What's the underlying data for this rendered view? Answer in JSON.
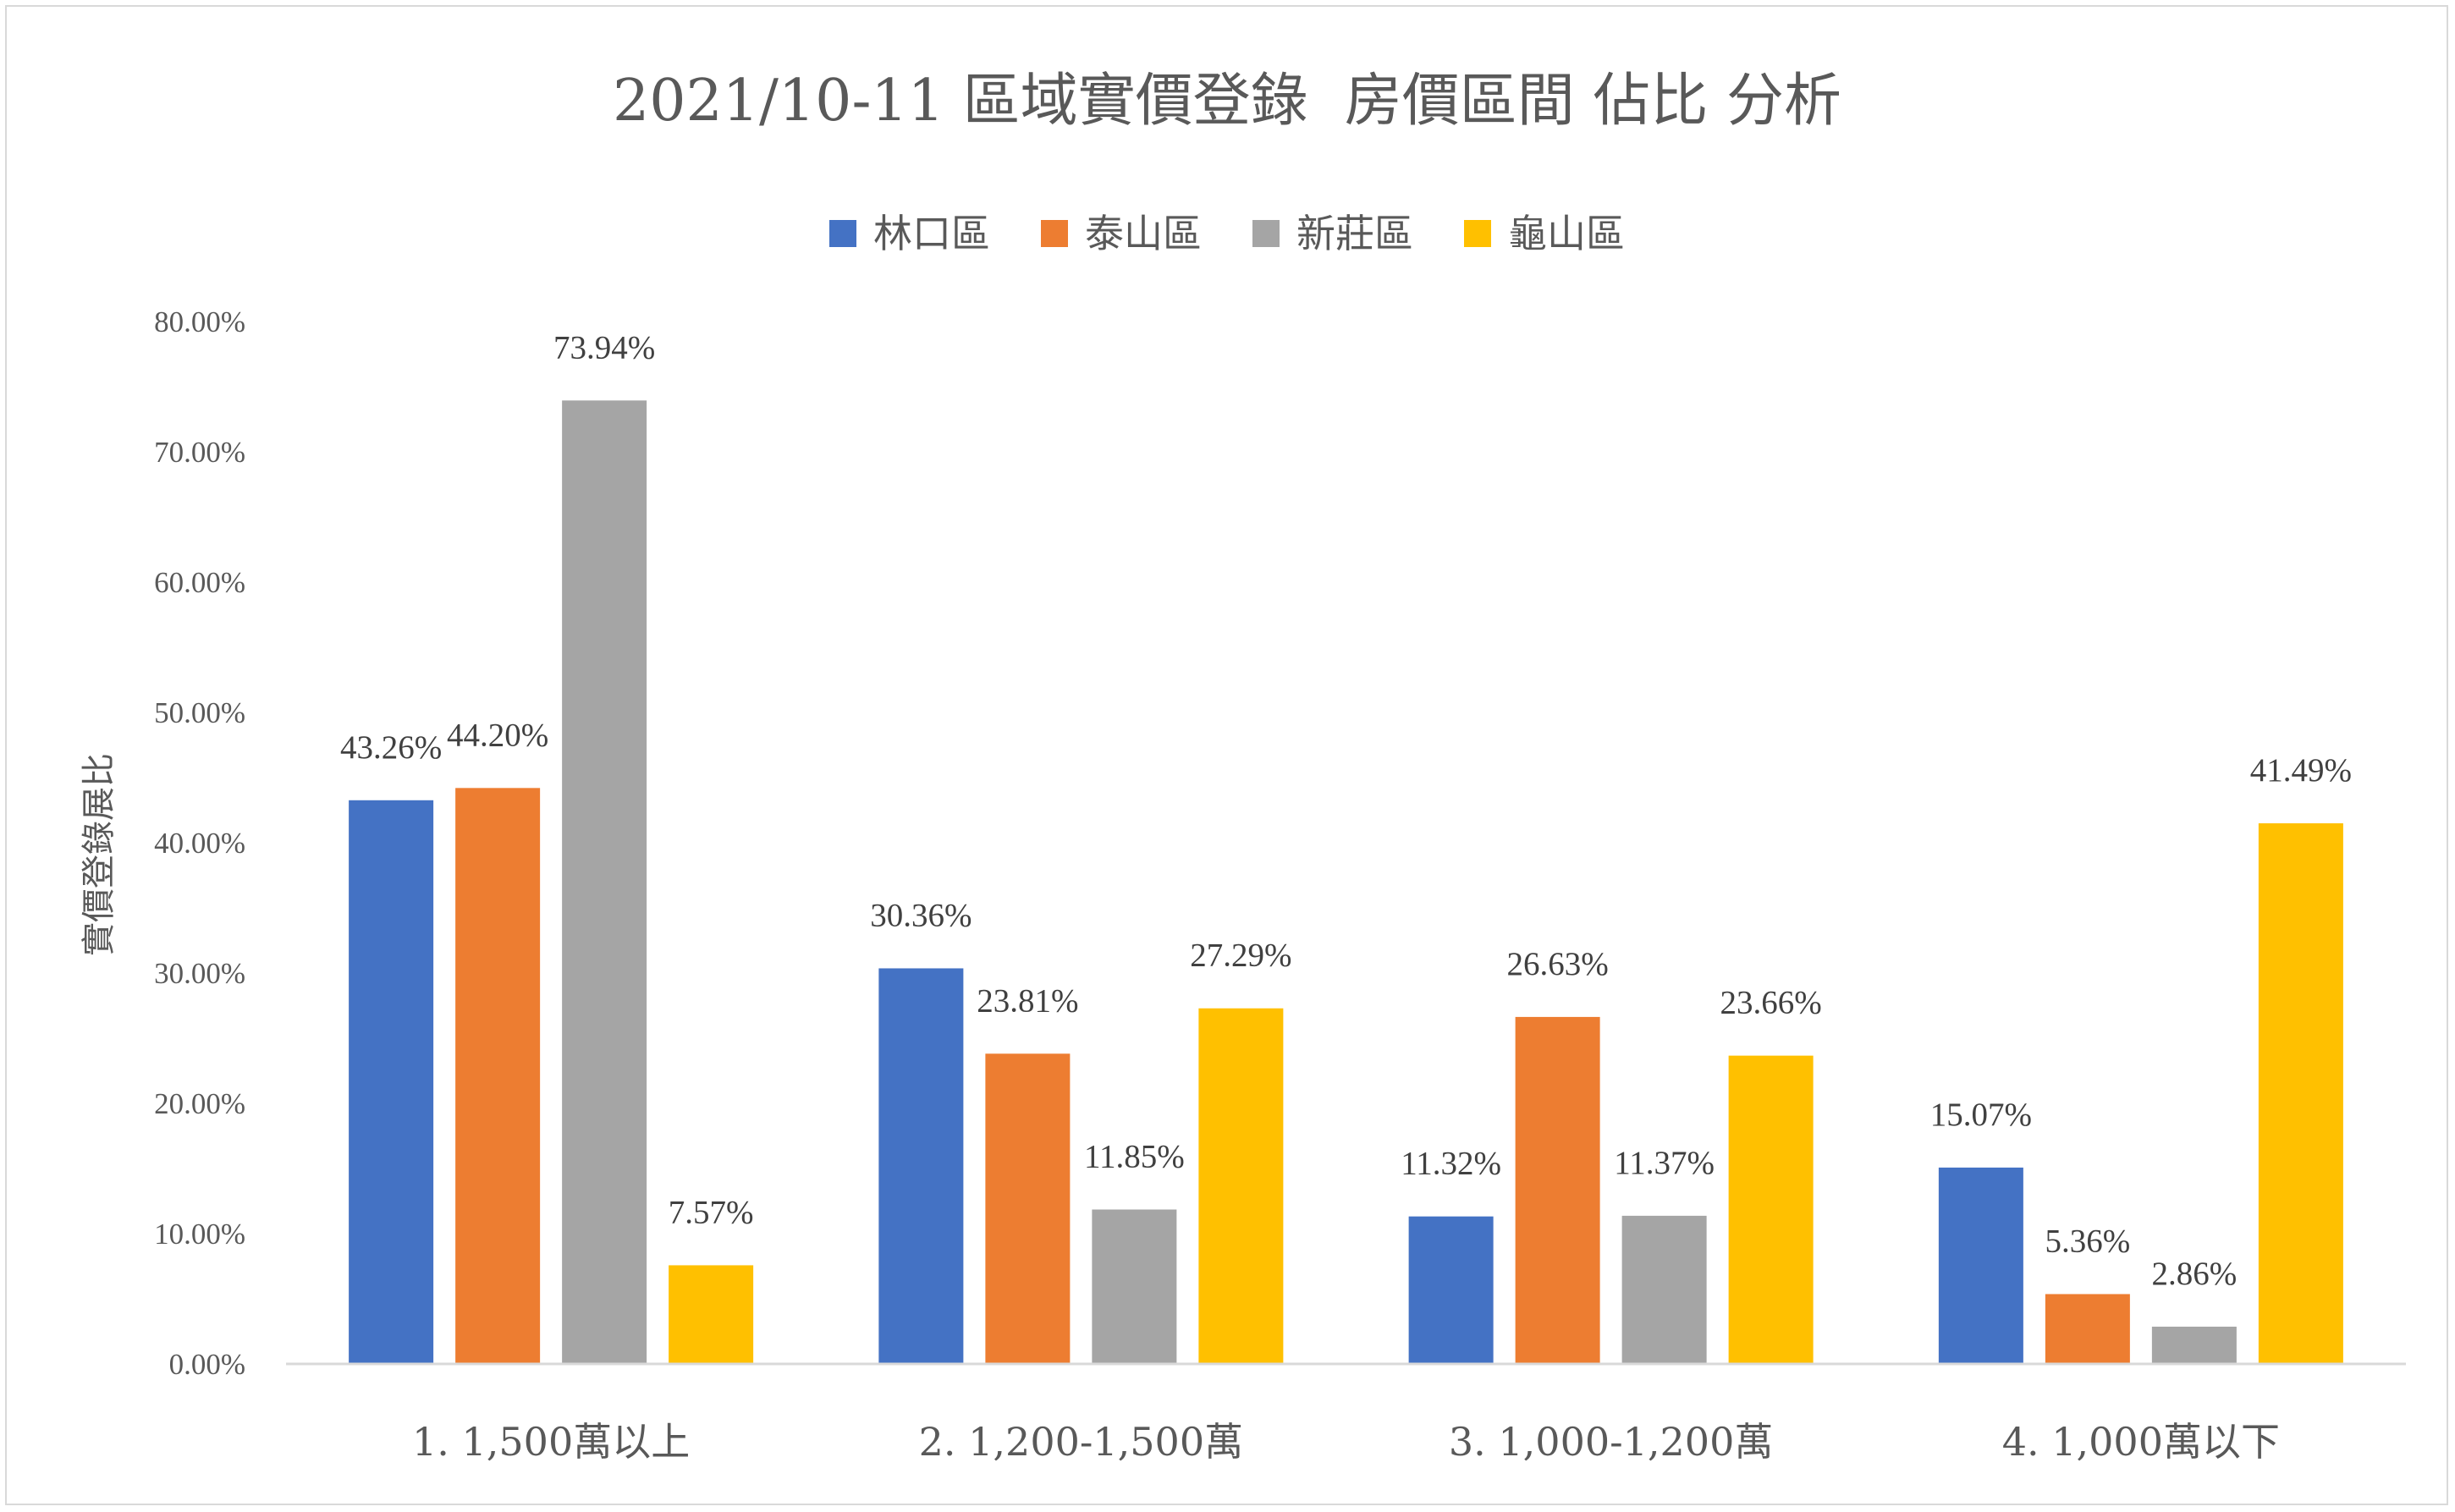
{
  "chart_data": {
    "type": "bar",
    "title": "2021/10-11 區域實價登錄  房價區間 佔比 分析",
    "ylabel": "實價登錄展比",
    "xlabel": "",
    "ylim": [
      0,
      80
    ],
    "yticks": [
      0,
      10,
      20,
      30,
      40,
      50,
      60,
      70,
      80
    ],
    "ytick_labels": [
      "0.00%",
      "10.00%",
      "20.00%",
      "30.00%",
      "40.00%",
      "50.00%",
      "60.00%",
      "70.00%",
      "80.00%"
    ],
    "grid": false,
    "legend_position": "top-center",
    "categories": [
      "1. 1,500萬以上",
      "2. 1,200-1,500萬",
      "3. 1,000-1,200萬",
      "4. 1,000萬以下"
    ],
    "series": [
      {
        "name": "林口區",
        "color": "#4472C4",
        "values": [
          43.26,
          30.36,
          11.32,
          15.07
        ],
        "labels": [
          "43.26%",
          "30.36%",
          "11.32%",
          "15.07%"
        ]
      },
      {
        "name": "泰山區",
        "color": "#ED7D31",
        "values": [
          44.2,
          23.81,
          26.63,
          5.36
        ],
        "labels": [
          "44.20%",
          "23.81%",
          "26.63%",
          "5.36%"
        ]
      },
      {
        "name": "新莊區",
        "color": "#A5A5A5",
        "values": [
          73.94,
          11.85,
          11.37,
          2.86
        ],
        "labels": [
          "73.94%",
          "11.85%",
          "11.37%",
          "2.86%"
        ]
      },
      {
        "name": "龜山區",
        "color": "#FFC000",
        "values": [
          7.57,
          27.29,
          23.66,
          41.49
        ],
        "labels": [
          "7.57%",
          "27.29%",
          "23.66%",
          "41.49%"
        ]
      }
    ]
  }
}
